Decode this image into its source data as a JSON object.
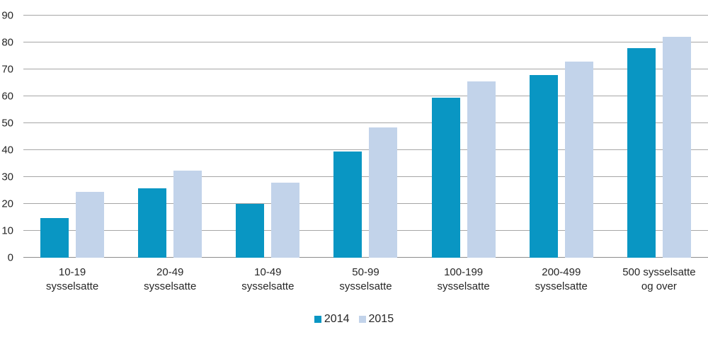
{
  "chart_data": {
    "type": "bar",
    "title": "",
    "xlabel": "",
    "ylabel": "",
    "categories": [
      "10-19 sysselsatte",
      "20-49 sysselsatte",
      "10-49 sysselsatte",
      "50-99 sysselsatte",
      "100-199 sysselsatte",
      "200-499 sysselsatte",
      "500 sysselsatte og over"
    ],
    "category_label_lines": [
      [
        "10-19",
        "sysselsatte"
      ],
      [
        "20-49",
        "sysselsatte"
      ],
      [
        "10-49",
        "sysselsatte"
      ],
      [
        "50-99",
        "sysselsatte"
      ],
      [
        "100-199",
        "sysselsatte"
      ],
      [
        "200-499",
        "sysselsatte"
      ],
      [
        "500 sysselsatte",
        "og over"
      ]
    ],
    "series": [
      {
        "name": "2014",
        "color": "#0996c3",
        "values": [
          14.8,
          25.7,
          20.0,
          39.5,
          59.5,
          68.0,
          78.0
        ]
      },
      {
        "name": "2015",
        "color": "#c2d3ea",
        "values": [
          24.5,
          32.3,
          27.9,
          48.5,
          65.5,
          73.0,
          82.0
        ]
      }
    ],
    "ylim": [
      0,
      90
    ],
    "yticks": [
      0,
      10,
      20,
      30,
      40,
      50,
      60,
      70,
      80,
      90
    ],
    "grid": "horizontal",
    "legend_position": "bottom-center",
    "colors": {
      "gridline": "#a6a6a6",
      "baseline": "#8c8c8c",
      "text": "#262626",
      "background": "#ffffff"
    }
  }
}
